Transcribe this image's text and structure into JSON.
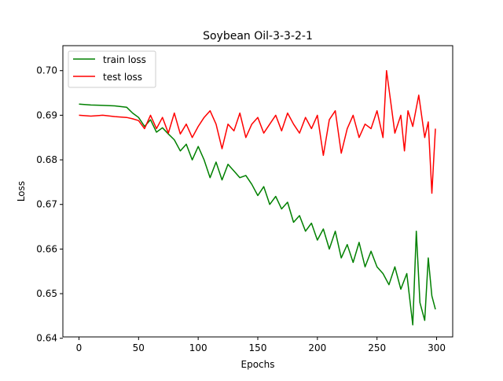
{
  "chart_data": {
    "type": "line",
    "title": "Soybean Oil-3-3-2-1",
    "xlabel": "Epochs",
    "ylabel": "Loss",
    "xlim": [
      -13.5,
      313.5
    ],
    "ylim": [
      0.6403,
      0.7056
    ],
    "xticks": [
      0,
      50,
      100,
      150,
      200,
      250,
      300
    ],
    "xtick_labels": [
      "0",
      "50",
      "100",
      "150",
      "200",
      "250",
      "300"
    ],
    "yticks": [
      0.64,
      0.65,
      0.66,
      0.67,
      0.68,
      0.69,
      0.7
    ],
    "ytick_labels": [
      "0.64",
      "0.65",
      "0.66",
      "0.67",
      "0.68",
      "0.69",
      "0.70"
    ],
    "grid": false,
    "legend_position": "upper-left",
    "series": [
      {
        "name": "train loss",
        "color": "#008000",
        "x": [
          0,
          10,
          20,
          30,
          40,
          45,
          50,
          55,
          60,
          65,
          70,
          75,
          80,
          85,
          90,
          95,
          100,
          105,
          110,
          115,
          120,
          125,
          130,
          135,
          140,
          145,
          150,
          155,
          160,
          165,
          170,
          175,
          180,
          185,
          190,
          195,
          200,
          205,
          210,
          215,
          220,
          225,
          230,
          235,
          240,
          245,
          250,
          255,
          260,
          265,
          270,
          275,
          280,
          283,
          286,
          290,
          293,
          296,
          299
        ],
        "y": [
          0.6925,
          0.6923,
          0.6922,
          0.6921,
          0.6918,
          0.6905,
          0.6895,
          0.6875,
          0.689,
          0.6862,
          0.6872,
          0.6858,
          0.6845,
          0.682,
          0.6835,
          0.68,
          0.683,
          0.68,
          0.676,
          0.6795,
          0.6755,
          0.679,
          0.6775,
          0.676,
          0.6765,
          0.6745,
          0.672,
          0.674,
          0.67,
          0.6718,
          0.669,
          0.6705,
          0.666,
          0.6675,
          0.664,
          0.6658,
          0.662,
          0.6645,
          0.66,
          0.664,
          0.658,
          0.661,
          0.657,
          0.6615,
          0.656,
          0.6595,
          0.656,
          0.6545,
          0.652,
          0.656,
          0.651,
          0.6545,
          0.643,
          0.664,
          0.648,
          0.644,
          0.658,
          0.6495,
          0.6465
        ]
      },
      {
        "name": "test loss",
        "color": "#ff0000",
        "x": [
          0,
          10,
          20,
          30,
          40,
          45,
          50,
          55,
          60,
          65,
          70,
          75,
          80,
          85,
          90,
          95,
          100,
          105,
          110,
          115,
          120,
          125,
          130,
          135,
          140,
          145,
          150,
          155,
          160,
          165,
          170,
          175,
          180,
          185,
          190,
          195,
          200,
          205,
          210,
          215,
          220,
          225,
          230,
          235,
          240,
          245,
          250,
          255,
          258,
          262,
          265,
          270,
          273,
          276,
          280,
          285,
          290,
          293,
          296,
          299
        ],
        "y": [
          0.69,
          0.6898,
          0.69,
          0.6897,
          0.6895,
          0.6892,
          0.6888,
          0.687,
          0.69,
          0.687,
          0.6895,
          0.686,
          0.6905,
          0.6858,
          0.688,
          0.685,
          0.6875,
          0.6895,
          0.691,
          0.688,
          0.6825,
          0.688,
          0.6865,
          0.6905,
          0.685,
          0.688,
          0.6895,
          0.686,
          0.688,
          0.69,
          0.6865,
          0.6905,
          0.688,
          0.686,
          0.6895,
          0.687,
          0.69,
          0.681,
          0.689,
          0.691,
          0.6815,
          0.687,
          0.69,
          0.685,
          0.688,
          0.687,
          0.691,
          0.685,
          0.7,
          0.692,
          0.686,
          0.69,
          0.682,
          0.691,
          0.6875,
          0.6945,
          0.685,
          0.6885,
          0.6725,
          0.687
        ]
      }
    ]
  }
}
